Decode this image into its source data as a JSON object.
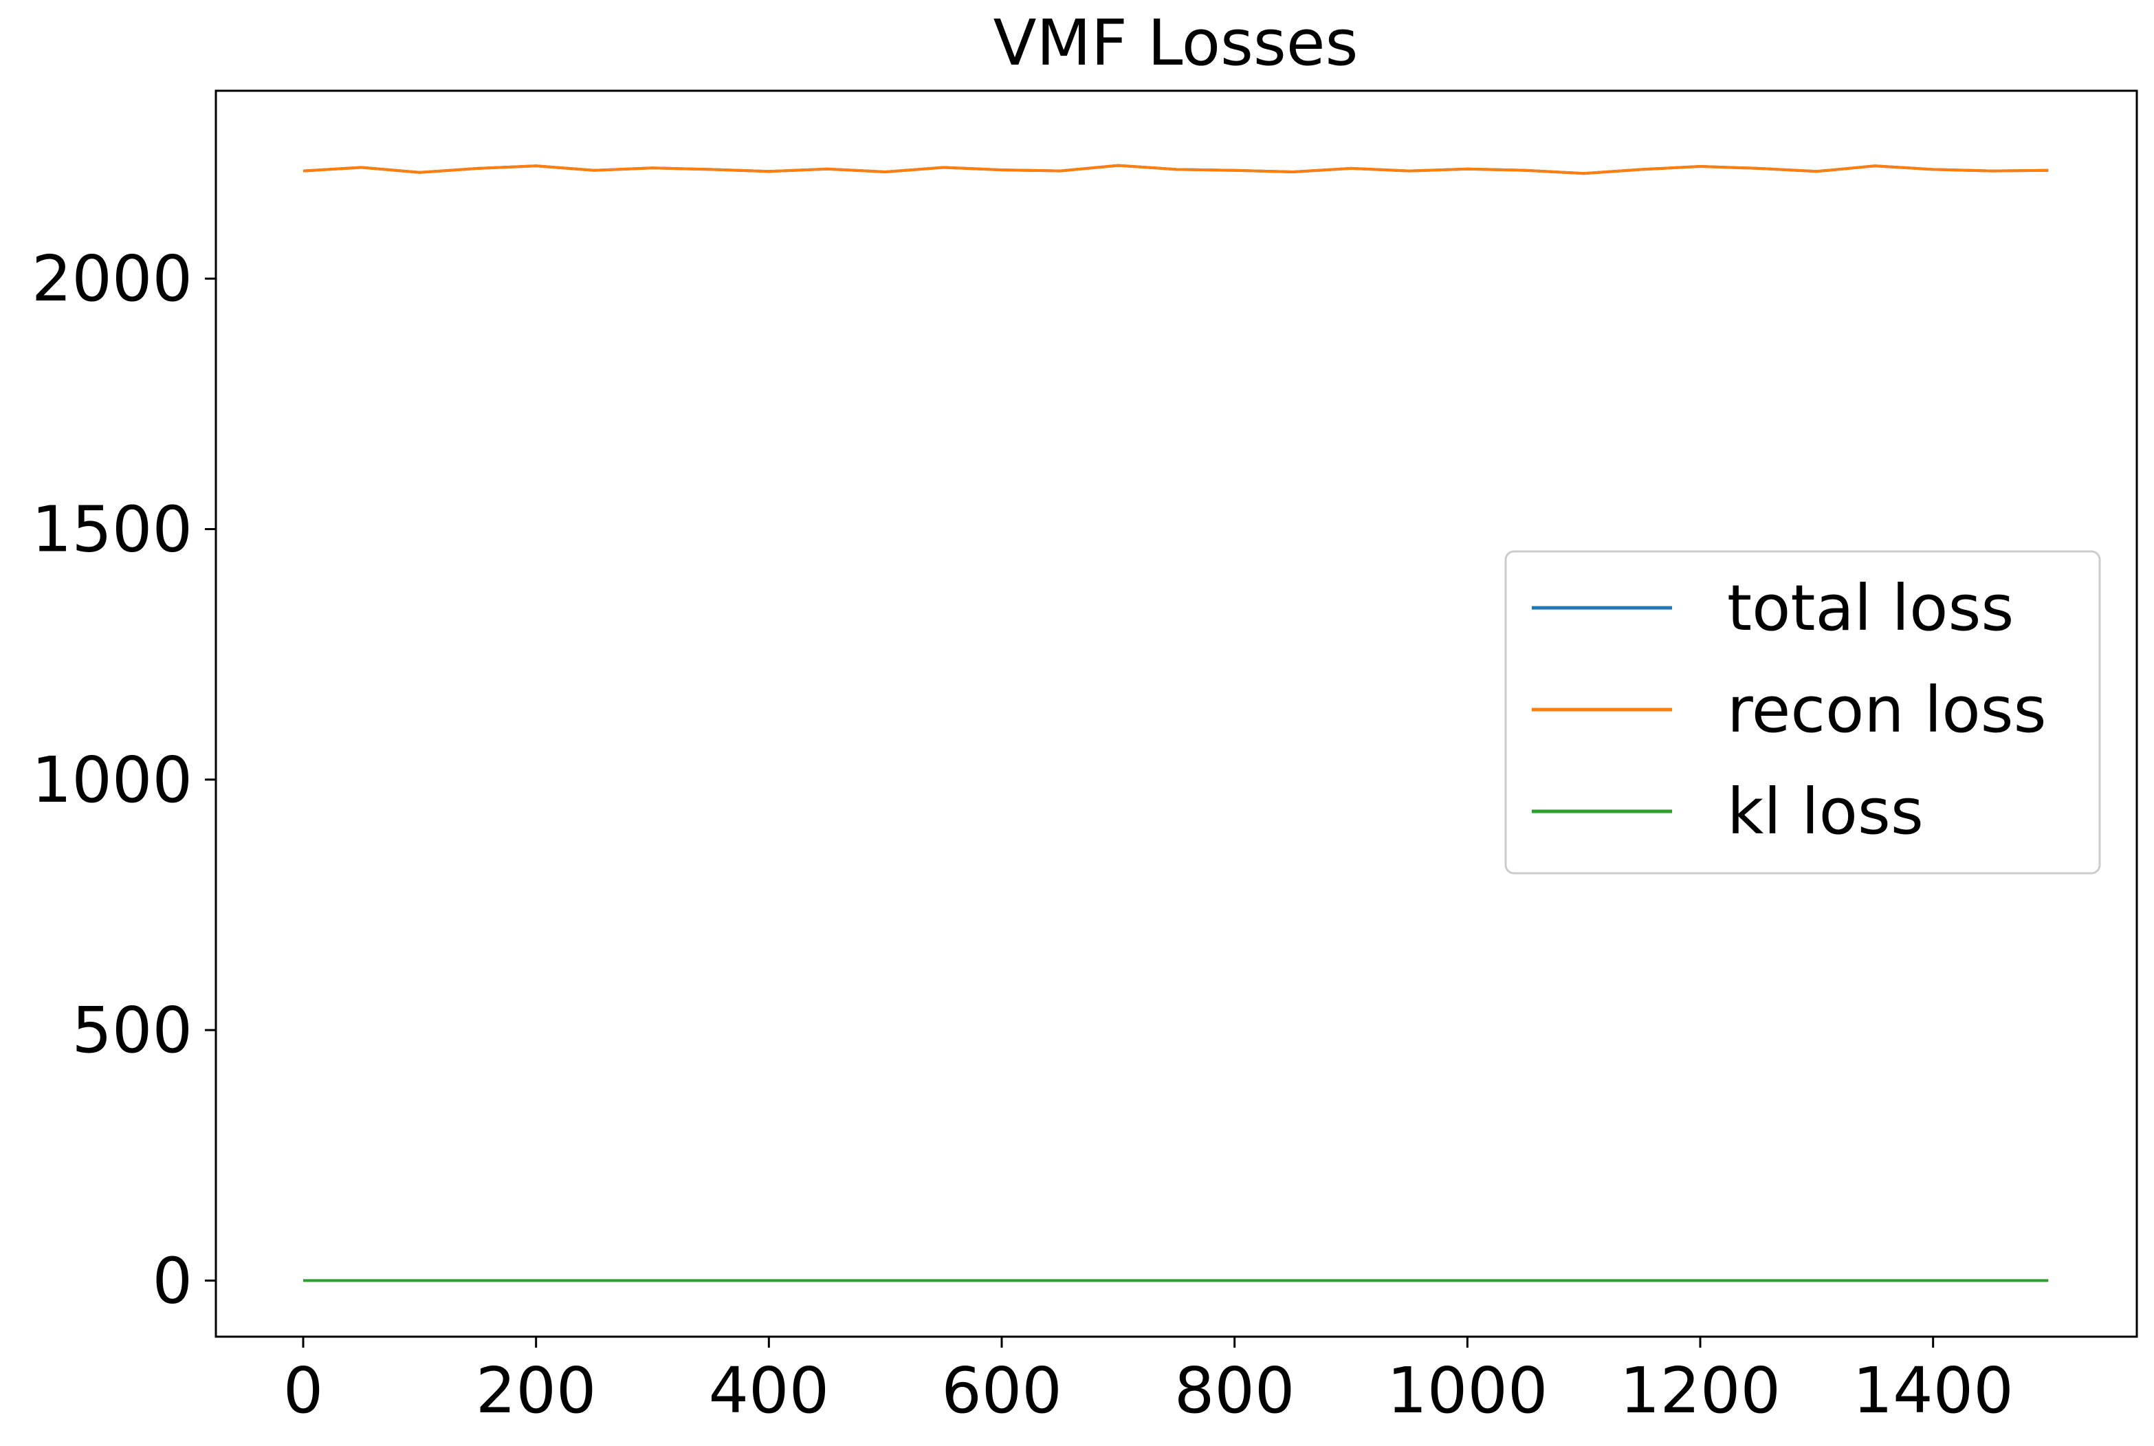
{
  "chart_data": {
    "type": "line",
    "title": "VMF Losses",
    "xlabel": "",
    "ylabel": "",
    "xlim": [
      -75,
      1575
    ],
    "ylim": [
      -112,
      2375
    ],
    "xticks": [
      0,
      200,
      400,
      600,
      800,
      1000,
      1200,
      1400
    ],
    "yticks": [
      0,
      500,
      1000,
      1500,
      2000
    ],
    "grid": false,
    "legend_position": "center-right",
    "series": [
      {
        "name": "total loss",
        "color": "#1f77b4",
        "x": [
          0,
          50,
          100,
          150,
          200,
          250,
          300,
          350,
          400,
          450,
          500,
          550,
          600,
          650,
          700,
          750,
          800,
          850,
          900,
          950,
          1000,
          1050,
          1100,
          1150,
          1200,
          1250,
          1300,
          1350,
          1400,
          1450,
          1499
        ],
        "y": [
          2215,
          2222,
          2212,
          2220,
          2225,
          2216,
          2221,
          2218,
          2214,
          2219,
          2213,
          2222,
          2217,
          2215,
          2226,
          2218,
          2216,
          2213,
          2220,
          2215,
          2219,
          2216,
          2210,
          2218,
          2224,
          2220,
          2214,
          2225,
          2218,
          2215,
          2216
        ]
      },
      {
        "name": "recon loss",
        "color": "#ff7f0e",
        "x": [
          0,
          50,
          100,
          150,
          200,
          250,
          300,
          350,
          400,
          450,
          500,
          550,
          600,
          650,
          700,
          750,
          800,
          850,
          900,
          950,
          1000,
          1050,
          1100,
          1150,
          1200,
          1250,
          1300,
          1350,
          1400,
          1450,
          1499
        ],
        "y": [
          2215,
          2222,
          2212,
          2220,
          2225,
          2216,
          2221,
          2218,
          2214,
          2219,
          2213,
          2222,
          2217,
          2215,
          2226,
          2218,
          2216,
          2213,
          2220,
          2215,
          2219,
          2216,
          2210,
          2218,
          2224,
          2220,
          2214,
          2225,
          2218,
          2215,
          2216
        ]
      },
      {
        "name": "kl loss",
        "color": "#2ca02c",
        "x": [
          0,
          1499
        ],
        "y": [
          0,
          0
        ]
      }
    ]
  }
}
